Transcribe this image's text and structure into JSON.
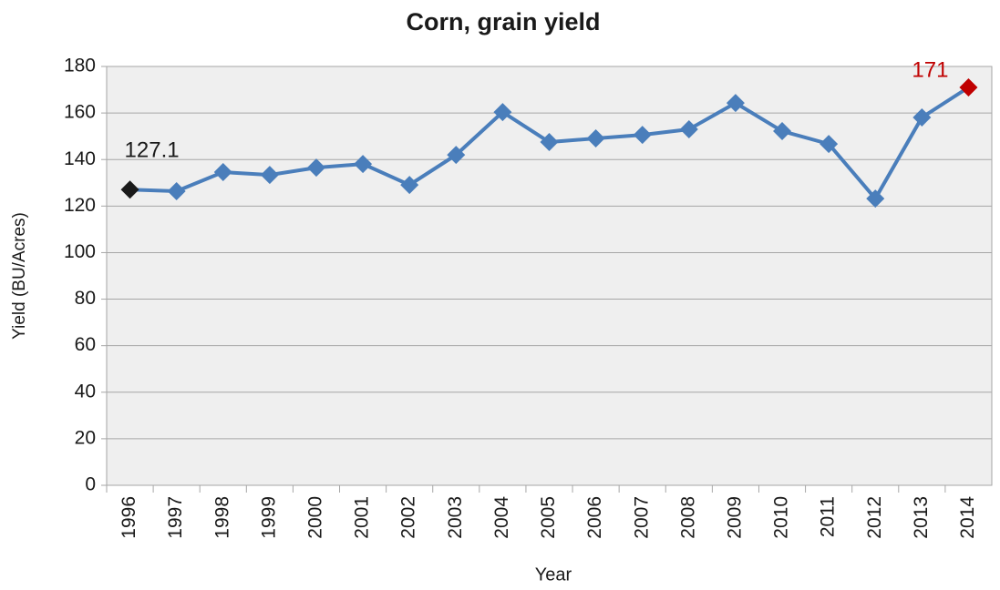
{
  "chart_data": {
    "type": "line",
    "title": "Corn, grain yield",
    "x_label": "Year",
    "y_label": "Yield (BU/Acres)",
    "categories": [
      "1996",
      "1997",
      "1998",
      "1999",
      "2000",
      "2001",
      "2002",
      "2003",
      "2004",
      "2005",
      "2006",
      "2007",
      "2008",
      "2009",
      "2010",
      "2011",
      "2012",
      "2013",
      "2014"
    ],
    "series": [
      {
        "name": "Yield",
        "color": "#4a7ebb",
        "values": [
          127.1,
          126.4,
          134.6,
          133.4,
          136.5,
          138.1,
          129.1,
          142.0,
          160.4,
          147.5,
          149.1,
          150.6,
          153.0,
          164.3,
          152.2,
          146.7,
          123.2,
          158.1,
          171
        ]
      }
    ],
    "highlights": [
      {
        "index": 0,
        "color": "#1a1a1a"
      },
      {
        "index": 18,
        "color": "#c00000"
      }
    ],
    "ylim": [
      0,
      180
    ],
    "yticks": [
      0,
      20,
      40,
      60,
      80,
      100,
      120,
      140,
      160,
      180
    ],
    "grid": true
  }
}
